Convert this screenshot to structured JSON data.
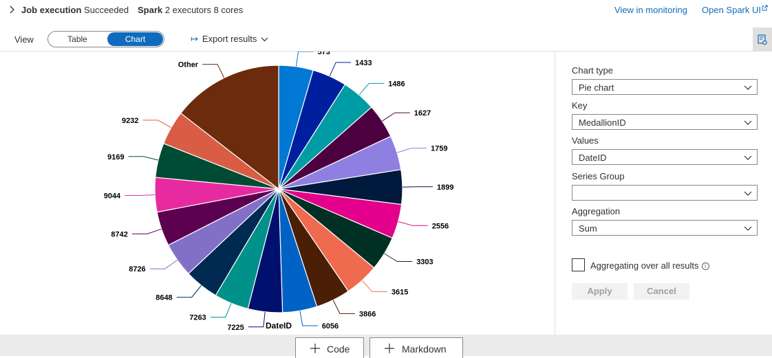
{
  "header": {
    "job_label": "Job execution",
    "job_status": "Succeeded",
    "spark_label": "Spark",
    "spark_info": "2 executors 8 cores",
    "view_monitoring": "View in monitoring",
    "open_spark_ui": "Open Spark UI",
    "ext_icon": "external-link-icon"
  },
  "toolbar": {
    "view_label": "View",
    "table_tab": "Table",
    "chart_tab": "Chart",
    "export_label": "Export results",
    "accent": "#0f6cbd"
  },
  "panel": {
    "chart_type_label": "Chart type",
    "chart_type_value": "Pie chart",
    "key_label": "Key",
    "key_value": "MedallionID",
    "values_label": "Values",
    "values_value": "DateID",
    "series_group_label": "Series Group",
    "series_group_value": "",
    "aggregation_label": "Aggregation",
    "aggregation_value": "Sum",
    "aggregating_label": "Aggregating over all results",
    "info_icon": "i",
    "apply_label": "Apply",
    "cancel_label": "Cancel"
  },
  "bottom": {
    "code_label": "Code",
    "markdown_label": "Markdown"
  },
  "chart_data": {
    "type": "pie",
    "xlabel": "DateID",
    "slices": [
      {
        "label": "573",
        "value": 4.5,
        "color": "#0078d4",
        "side": "right"
      },
      {
        "label": "1433",
        "value": 4.5,
        "color": "#001f9e",
        "side": "right"
      },
      {
        "label": "1486",
        "value": 4.5,
        "color": "#009ca6",
        "side": "right"
      },
      {
        "label": "1627",
        "value": 4.5,
        "color": "#4c0040",
        "side": "right"
      },
      {
        "label": "1759",
        "value": 4.5,
        "color": "#8f7fe0",
        "side": "right"
      },
      {
        "label": "1899",
        "value": 4.5,
        "color": "#001a3d",
        "side": "right"
      },
      {
        "label": "2556",
        "value": 4.5,
        "color": "#e3008c",
        "side": "right"
      },
      {
        "label": "3303",
        "value": 4.5,
        "color": "#002f23",
        "side": "right"
      },
      {
        "label": "3615",
        "value": 4.5,
        "color": "#f06a50",
        "side": "right"
      },
      {
        "label": "3866",
        "value": 4.5,
        "color": "#4a1f05",
        "side": "right"
      },
      {
        "label": "6056",
        "value": 4.5,
        "color": "#0062c4",
        "side": "right"
      },
      {
        "label": "7225",
        "value": 4.5,
        "color": "#00106e",
        "side": "right"
      },
      {
        "label": "7263",
        "value": 4.5,
        "color": "#00918a",
        "side": "left"
      },
      {
        "label": "8648",
        "value": 4.5,
        "color": "#002a52",
        "side": "left"
      },
      {
        "label": "8726",
        "value": 4.5,
        "color": "#8270c8",
        "side": "left"
      },
      {
        "label": "8742",
        "value": 4.5,
        "color": "#5c0050",
        "side": "left"
      },
      {
        "label": "9044",
        "value": 4.5,
        "color": "#e72aa0",
        "side": "left"
      },
      {
        "label": "9169",
        "value": 4.5,
        "color": "#004b33",
        "side": "left"
      },
      {
        "label": "9232",
        "value": 4.5,
        "color": "#d95d45",
        "side": "left"
      },
      {
        "label": "Other",
        "value": 14.5,
        "color": "#6b2b0c",
        "side": "left"
      }
    ]
  }
}
